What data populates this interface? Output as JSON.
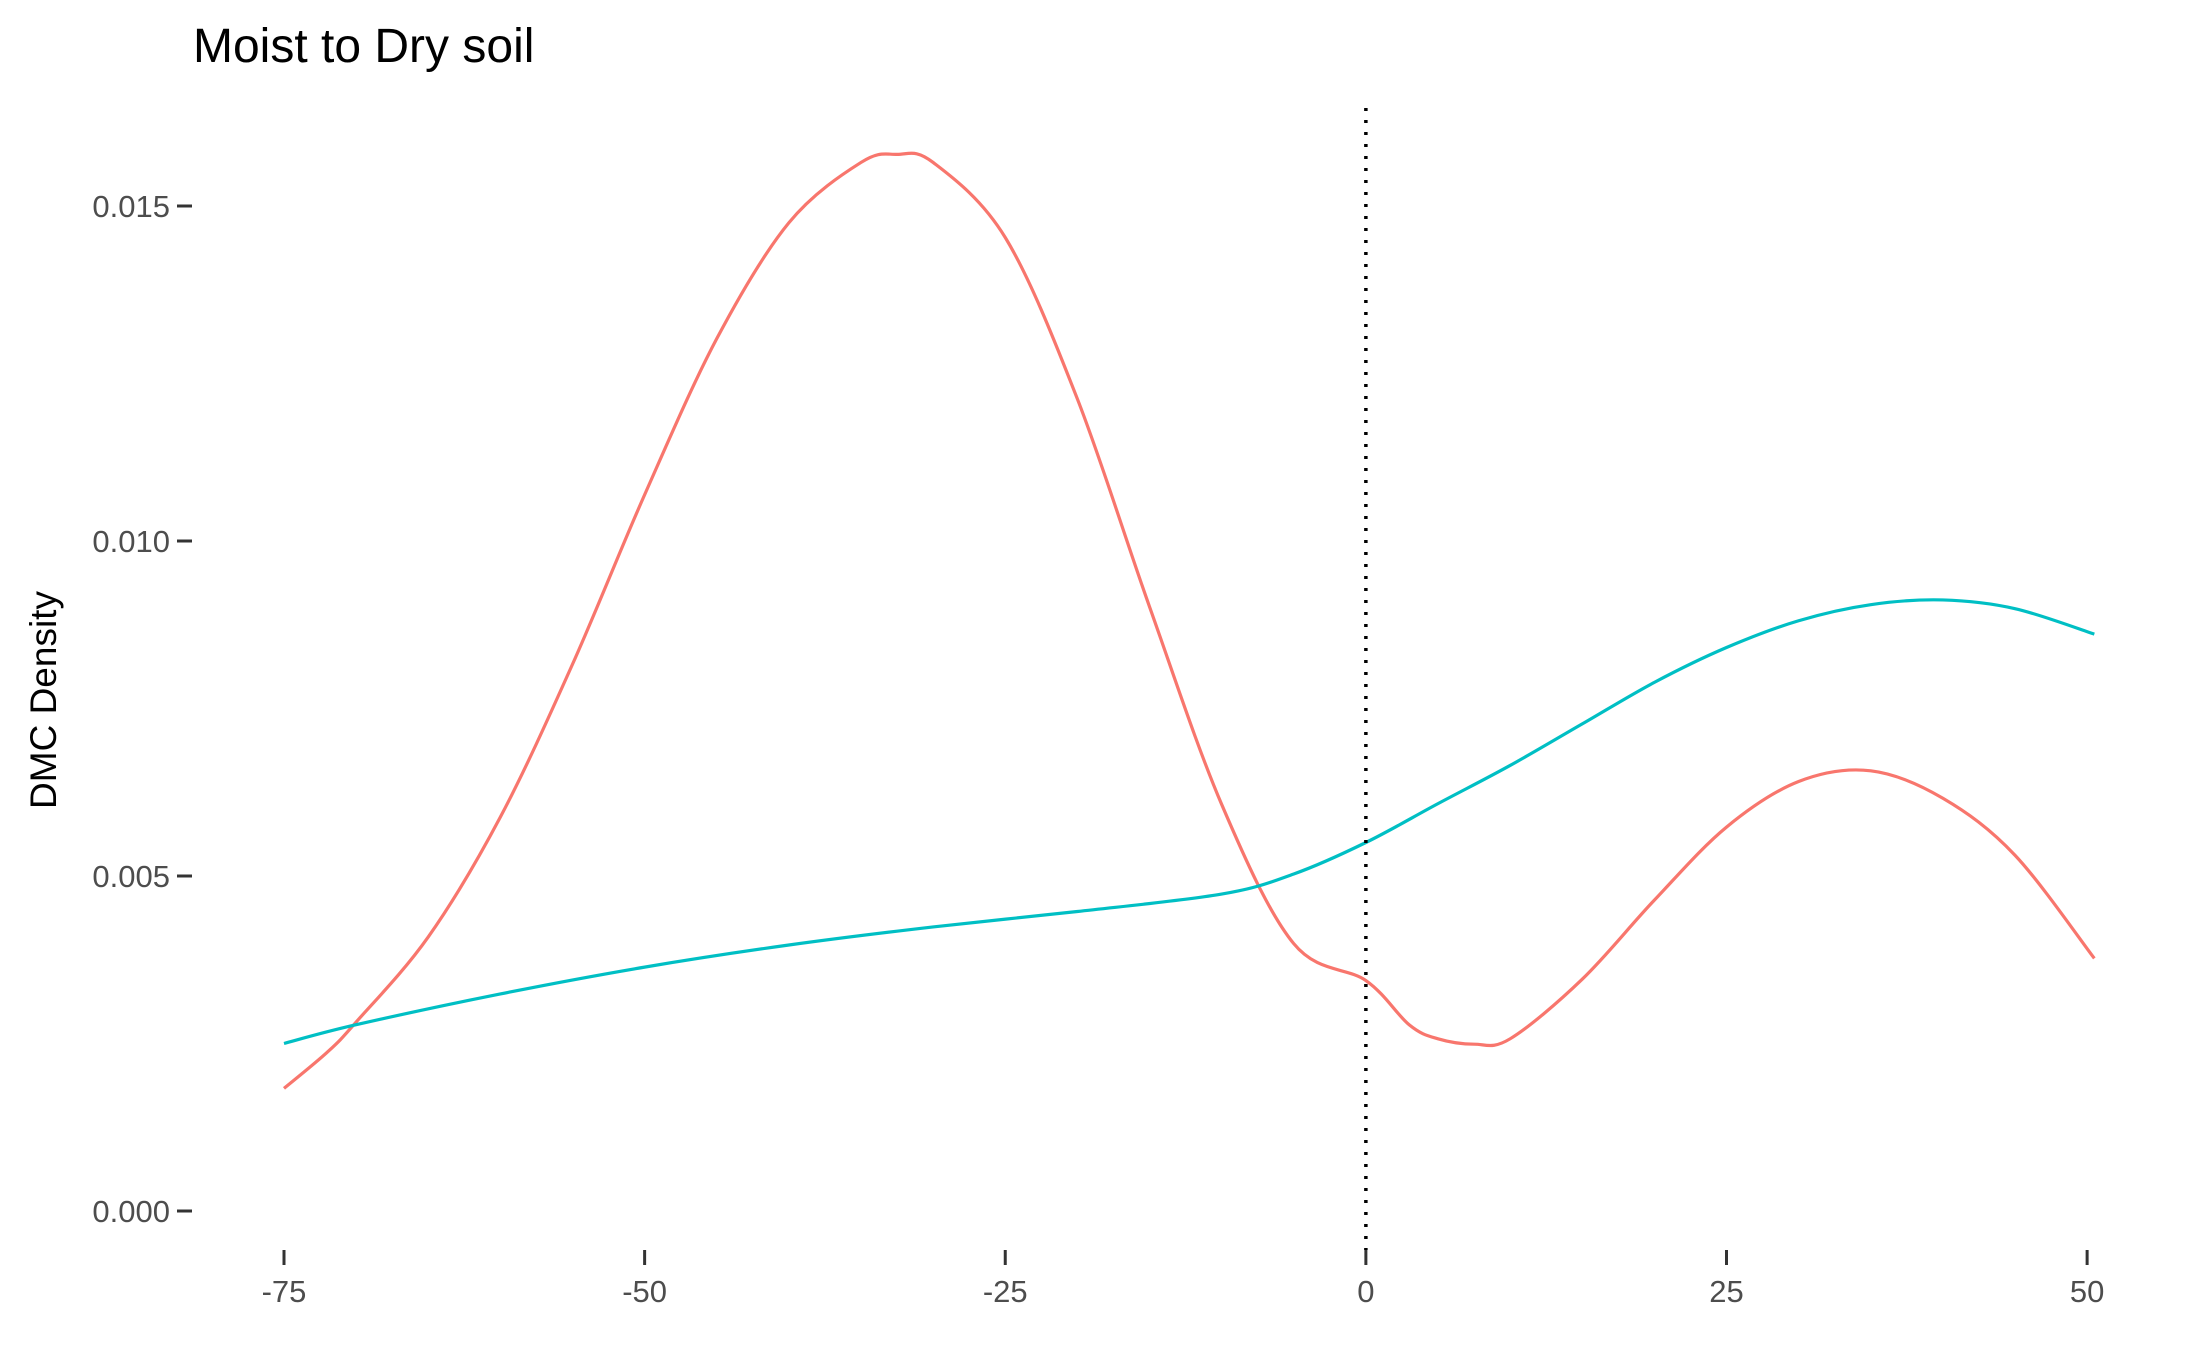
{
  "chart_data": {
    "type": "line",
    "title": "Moist to Dry soil",
    "xlabel": "",
    "ylabel": "DMC Density",
    "xlim": [
      -75,
      50.5
    ],
    "ylim": [
      0,
      0.016
    ],
    "x_ticks": [
      -75,
      -50,
      -25,
      0,
      25,
      50
    ],
    "x_tick_labels": [
      "-75",
      "-50",
      "-25",
      "0",
      "25",
      "50"
    ],
    "y_ticks": [
      0,
      0.005,
      0.01,
      0.015
    ],
    "y_tick_labels": [
      "0.000",
      "0.005",
      "0.010",
      "0.015"
    ],
    "vline": {
      "x": 0,
      "style": "dotted",
      "color": "#000000"
    },
    "grid": false,
    "legend": "none",
    "series": [
      {
        "color": "#F8766D",
        "x": [
          -75,
          -72,
          -70,
          -65,
          -60,
          -55,
          -50,
          -45,
          -40,
          -35,
          -32.5,
          -30,
          -25,
          -20,
          -15,
          -10,
          -5,
          0,
          3,
          5,
          7.5,
          10,
          15,
          20,
          25,
          30,
          35,
          40,
          45,
          50.5
        ],
        "y": [
          0.00183,
          0.00237,
          0.00282,
          0.00409,
          0.00588,
          0.00816,
          0.01069,
          0.01302,
          0.01475,
          0.01565,
          0.01577,
          0.01565,
          0.01453,
          0.01212,
          0.00902,
          0.00607,
          0.00399,
          0.00344,
          0.00278,
          0.00257,
          0.00249,
          0.00257,
          0.00346,
          0.00464,
          0.00573,
          0.00641,
          0.00657,
          0.00616,
          0.00531,
          0.00377
        ]
      },
      {
        "color": "#00BFC4",
        "x": [
          -75,
          -70,
          -60,
          -50,
          -40,
          -30,
          -20,
          -10,
          -5,
          0,
          5,
          10,
          15,
          20,
          25,
          30,
          35,
          40,
          45,
          50.5
        ],
        "y": [
          0.0025,
          0.00278,
          0.00324,
          0.00364,
          0.00397,
          0.00424,
          0.00447,
          0.00473,
          0.00503,
          0.0055,
          0.00608,
          0.00665,
          0.00727,
          0.00789,
          0.00841,
          0.00881,
          0.00905,
          0.00912,
          0.00899,
          0.00861
        ]
      }
    ]
  }
}
